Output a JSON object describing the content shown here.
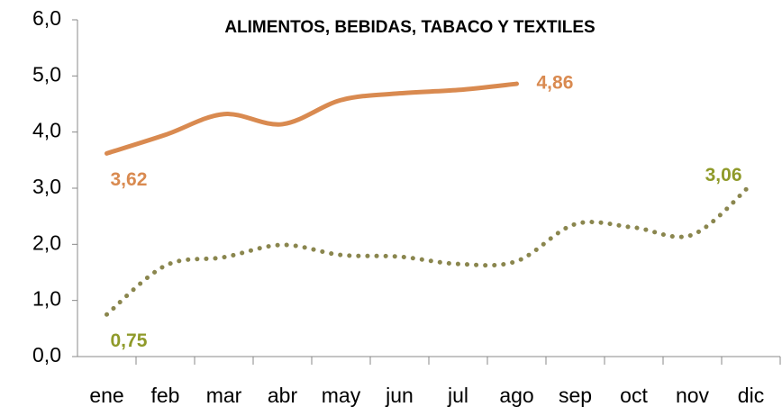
{
  "chart_data": {
    "type": "line",
    "title": "ALIMENTOS, BEBIDAS, TABACO Y TEXTILES",
    "categories": [
      "ene",
      "feb",
      "mar",
      "abr",
      "may",
      "jun",
      "jul",
      "ago",
      "sep",
      "oct",
      "nov",
      "dic"
    ],
    "series": [
      {
        "color": "#d98a50",
        "line_style": "solid",
        "label_color": "#d98a50",
        "values": [
          3.62,
          3.95,
          4.32,
          4.14,
          4.57,
          4.69,
          4.75,
          4.86,
          null,
          null,
          null,
          null
        ],
        "value_labels": [
          "3,62",
          null,
          null,
          null,
          null,
          null,
          null,
          "4,86",
          null,
          null,
          null,
          null
        ]
      },
      {
        "color": "#8a864e",
        "line_style": "dotted",
        "label_color": "#8f9a2a",
        "values": [
          0.75,
          1.62,
          1.77,
          1.99,
          1.81,
          1.78,
          1.65,
          1.7,
          2.36,
          2.3,
          2.17,
          3.06
        ],
        "value_labels": [
          "0,75",
          null,
          null,
          null,
          null,
          null,
          null,
          null,
          null,
          null,
          null,
          "3,06"
        ]
      }
    ],
    "ylim": [
      0,
      6
    ],
    "yticks": [
      {
        "value": 0,
        "label": "0,0"
      },
      {
        "value": 1,
        "label": "1,0"
      },
      {
        "value": 2,
        "label": "2,0"
      },
      {
        "value": 3,
        "label": "3,0"
      },
      {
        "value": 4,
        "label": "4,0"
      },
      {
        "value": 5,
        "label": "5,0"
      },
      {
        "value": 6,
        "label": "6,0"
      }
    ],
    "grid": false
  }
}
